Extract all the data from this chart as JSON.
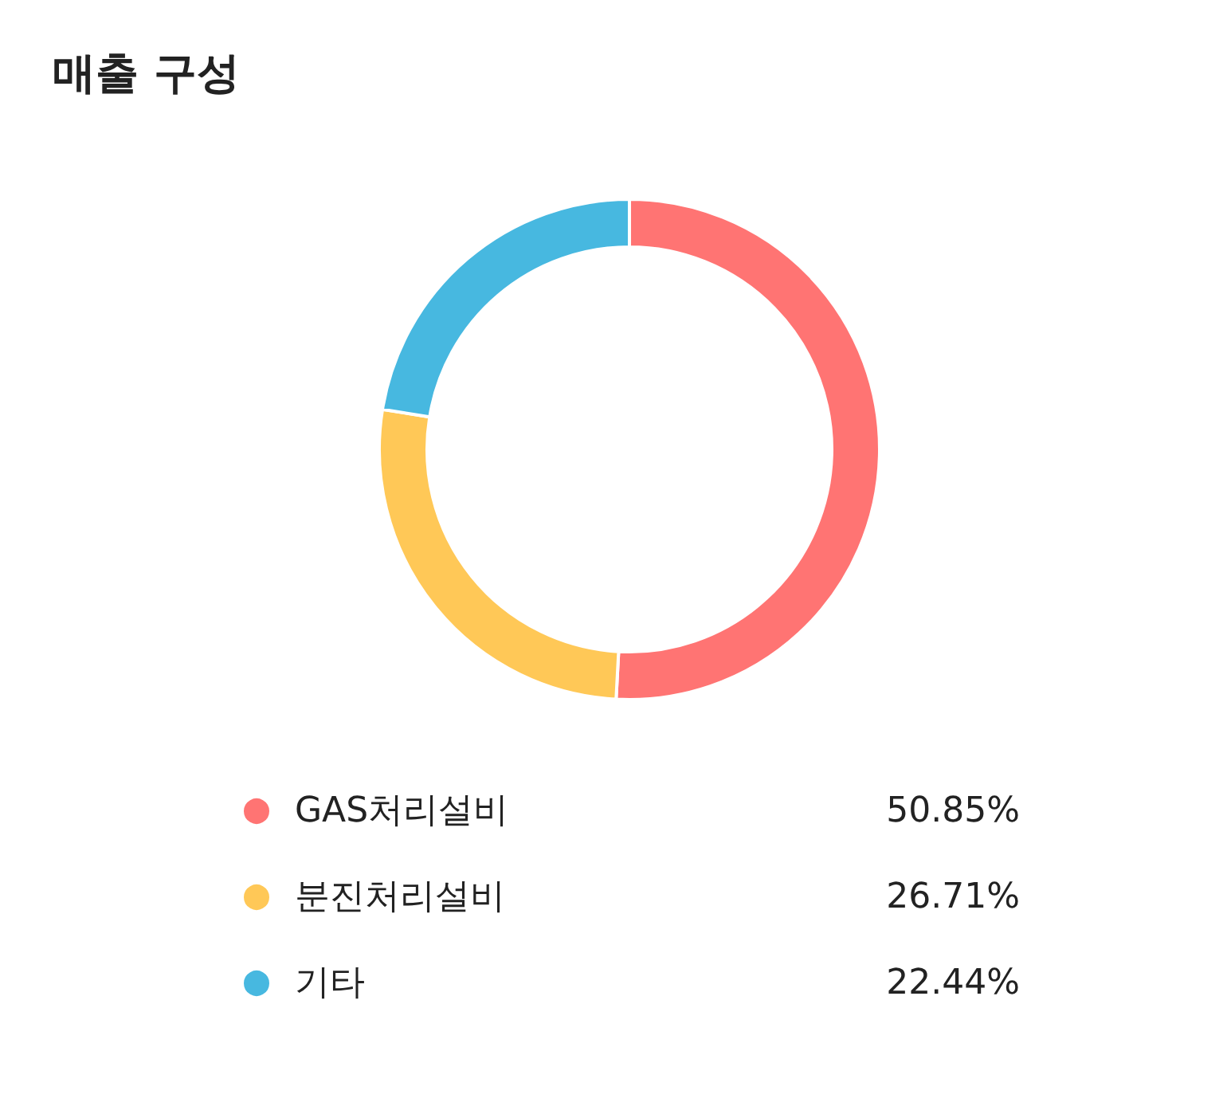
{
  "chart_data": {
    "type": "donut",
    "title": "매출 구성",
    "categories": [
      "GAS처리설비",
      "분진처리설비",
      "기타"
    ],
    "values": [
      50.85,
      26.71,
      22.44
    ],
    "value_labels": [
      "50.85%",
      "26.71%",
      "22.44%"
    ],
    "colors": [
      "#ff7473",
      "#ffc857",
      "#47b8e0"
    ],
    "legend": "bottom"
  }
}
